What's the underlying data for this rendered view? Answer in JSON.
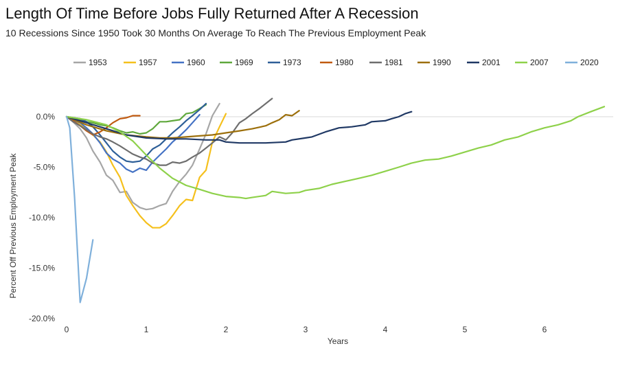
{
  "chart_data": {
    "type": "line",
    "title": "Length Of Time Before Jobs Fully Returned After A Recession",
    "subtitle": "10 Recessions Since 1950 Took 30 Months On Average To Reach The Previous Employment Peak",
    "xlabel": "Years",
    "ylabel": "Percent Off Previous Employment Peak",
    "xlim": [
      0,
      7
    ],
    "ylim": [
      -20,
      2
    ],
    "xticks": [
      "0",
      "1",
      "2",
      "3",
      "4",
      "5",
      "6"
    ],
    "yticks": [
      "0.0%",
      "-5.0%",
      "-10.0%",
      "-15.0%",
      "-20.0%"
    ],
    "legend_position": "top",
    "series": [
      {
        "name": "1953",
        "color": "#a6a6a6",
        "points": [
          [
            0,
            0
          ],
          [
            0.08,
            -0.5
          ],
          [
            0.17,
            -1.2
          ],
          [
            0.25,
            -2.1
          ],
          [
            0.33,
            -3.4
          ],
          [
            0.42,
            -4.5
          ],
          [
            0.5,
            -5.8
          ],
          [
            0.58,
            -6.3
          ],
          [
            0.67,
            -7.5
          ],
          [
            0.75,
            -7.4
          ],
          [
            0.83,
            -8.5
          ],
          [
            0.92,
            -9.0
          ],
          [
            1.0,
            -9.2
          ],
          [
            1.08,
            -9.1
          ],
          [
            1.17,
            -8.8
          ],
          [
            1.25,
            -8.6
          ],
          [
            1.33,
            -7.4
          ],
          [
            1.42,
            -6.4
          ],
          [
            1.5,
            -5.7
          ],
          [
            1.58,
            -4.8
          ],
          [
            1.67,
            -3.2
          ],
          [
            1.75,
            -1.7
          ],
          [
            1.83,
            0.1
          ],
          [
            1.92,
            1.3
          ]
        ]
      },
      {
        "name": "1957",
        "color": "#f5c01c",
        "points": [
          [
            0,
            0
          ],
          [
            0.08,
            -0.3
          ],
          [
            0.17,
            -0.8
          ],
          [
            0.25,
            -1.2
          ],
          [
            0.33,
            -1.8
          ],
          [
            0.42,
            -2.5
          ],
          [
            0.5,
            -3.5
          ],
          [
            0.58,
            -4.8
          ],
          [
            0.67,
            -6.0
          ],
          [
            0.75,
            -7.8
          ],
          [
            0.83,
            -8.8
          ],
          [
            0.92,
            -9.8
          ],
          [
            1.0,
            -10.5
          ],
          [
            1.08,
            -11.0
          ],
          [
            1.17,
            -11.0
          ],
          [
            1.25,
            -10.6
          ],
          [
            1.33,
            -9.8
          ],
          [
            1.42,
            -8.8
          ],
          [
            1.5,
            -8.2
          ],
          [
            1.58,
            -8.3
          ],
          [
            1.67,
            -6.0
          ],
          [
            1.75,
            -5.3
          ],
          [
            1.83,
            -2.5
          ],
          [
            1.92,
            -1.0
          ],
          [
            2.0,
            0.3
          ]
        ]
      },
      {
        "name": "1960",
        "color": "#4472c4",
        "points": [
          [
            0,
            0
          ],
          [
            0.08,
            -0.3
          ],
          [
            0.17,
            -0.6
          ],
          [
            0.25,
            -1.1
          ],
          [
            0.33,
            -1.7
          ],
          [
            0.42,
            -2.6
          ],
          [
            0.5,
            -3.6
          ],
          [
            0.58,
            -4.2
          ],
          [
            0.67,
            -4.6
          ],
          [
            0.75,
            -5.2
          ],
          [
            0.83,
            -5.5
          ],
          [
            0.92,
            -5.1
          ],
          [
            1.0,
            -5.3
          ],
          [
            1.08,
            -4.5
          ],
          [
            1.17,
            -3.8
          ],
          [
            1.25,
            -3.2
          ],
          [
            1.33,
            -2.5
          ],
          [
            1.42,
            -1.9
          ],
          [
            1.5,
            -1.3
          ],
          [
            1.58,
            -0.6
          ],
          [
            1.67,
            0.2
          ]
        ]
      },
      {
        "name": "1969",
        "color": "#5fa83c",
        "points": [
          [
            0,
            0
          ],
          [
            0.08,
            -0.1
          ],
          [
            0.17,
            -0.3
          ],
          [
            0.25,
            -0.5
          ],
          [
            0.33,
            -0.6
          ],
          [
            0.42,
            -0.8
          ],
          [
            0.5,
            -0.9
          ],
          [
            0.58,
            -1.1
          ],
          [
            0.67,
            -1.4
          ],
          [
            0.75,
            -1.6
          ],
          [
            0.83,
            -1.5
          ],
          [
            0.92,
            -1.7
          ],
          [
            1.0,
            -1.6
          ],
          [
            1.08,
            -1.2
          ],
          [
            1.17,
            -0.5
          ],
          [
            1.25,
            -0.5
          ],
          [
            1.33,
            -0.4
          ],
          [
            1.42,
            -0.3
          ],
          [
            1.5,
            0.3
          ],
          [
            1.58,
            0.4
          ],
          [
            1.67,
            0.8
          ],
          [
            1.75,
            1.2
          ]
        ]
      },
      {
        "name": "1973",
        "color": "#2e5f98",
        "points": [
          [
            0,
            0
          ],
          [
            0.08,
            -0.1
          ],
          [
            0.17,
            -0.2
          ],
          [
            0.25,
            -0.5
          ],
          [
            0.33,
            -1.0
          ],
          [
            0.42,
            -1.8
          ],
          [
            0.5,
            -2.6
          ],
          [
            0.58,
            -3.4
          ],
          [
            0.67,
            -4.0
          ],
          [
            0.75,
            -4.4
          ],
          [
            0.83,
            -4.5
          ],
          [
            0.92,
            -4.4
          ],
          [
            1.0,
            -3.9
          ],
          [
            1.08,
            -3.2
          ],
          [
            1.17,
            -2.8
          ],
          [
            1.25,
            -2.2
          ],
          [
            1.33,
            -1.6
          ],
          [
            1.42,
            -1.0
          ],
          [
            1.5,
            -0.4
          ],
          [
            1.58,
            0.1
          ],
          [
            1.67,
            0.7
          ],
          [
            1.75,
            1.3
          ]
        ]
      },
      {
        "name": "1980",
        "color": "#c05a10",
        "points": [
          [
            0,
            0
          ],
          [
            0.08,
            -0.4
          ],
          [
            0.17,
            -0.9
          ],
          [
            0.25,
            -1.4
          ],
          [
            0.33,
            -1.8
          ],
          [
            0.42,
            -1.5
          ],
          [
            0.5,
            -1.1
          ],
          [
            0.58,
            -0.6
          ],
          [
            0.67,
            -0.2
          ],
          [
            0.75,
            -0.1
          ],
          [
            0.83,
            0.1
          ],
          [
            0.92,
            0.1
          ]
        ]
      },
      {
        "name": "1981",
        "color": "#6e6e6e",
        "points": [
          [
            0,
            0
          ],
          [
            0.08,
            -0.5
          ],
          [
            0.17,
            -0.9
          ],
          [
            0.25,
            -1.3
          ],
          [
            0.33,
            -1.7
          ],
          [
            0.42,
            -2.0
          ],
          [
            0.5,
            -2.2
          ],
          [
            0.58,
            -2.5
          ],
          [
            0.67,
            -2.9
          ],
          [
            0.75,
            -3.3
          ],
          [
            0.83,
            -3.7
          ],
          [
            0.92,
            -4.0
          ],
          [
            1.0,
            -4.2
          ],
          [
            1.08,
            -4.6
          ],
          [
            1.17,
            -4.8
          ],
          [
            1.25,
            -4.8
          ],
          [
            1.33,
            -4.5
          ],
          [
            1.42,
            -4.6
          ],
          [
            1.5,
            -4.4
          ],
          [
            1.58,
            -4.0
          ],
          [
            1.67,
            -3.6
          ],
          [
            1.75,
            -3.1
          ],
          [
            1.83,
            -2.6
          ],
          [
            1.92,
            -2.0
          ],
          [
            2.0,
            -2.3
          ],
          [
            2.08,
            -1.6
          ],
          [
            2.17,
            -0.6
          ],
          [
            2.25,
            -0.2
          ],
          [
            2.33,
            0.3
          ],
          [
            2.42,
            0.8
          ],
          [
            2.5,
            1.3
          ],
          [
            2.58,
            1.8
          ]
        ]
      },
      {
        "name": "1990",
        "color": "#9c6f0b",
        "points": [
          [
            0,
            0
          ],
          [
            0.25,
            -0.8
          ],
          [
            0.5,
            -1.4
          ],
          [
            0.75,
            -1.8
          ],
          [
            1.0,
            -2.0
          ],
          [
            1.17,
            -2.1
          ],
          [
            1.33,
            -2.1
          ],
          [
            1.5,
            -2.0
          ],
          [
            1.67,
            -1.9
          ],
          [
            1.83,
            -1.8
          ],
          [
            2.0,
            -1.6
          ],
          [
            2.17,
            -1.4
          ],
          [
            2.33,
            -1.2
          ],
          [
            2.5,
            -0.9
          ],
          [
            2.58,
            -0.6
          ],
          [
            2.67,
            -0.3
          ],
          [
            2.75,
            0.2
          ],
          [
            2.83,
            0.1
          ],
          [
            2.92,
            0.6
          ]
        ]
      },
      {
        "name": "2001",
        "color": "#1f3864",
        "points": [
          [
            0,
            0
          ],
          [
            0.25,
            -0.6
          ],
          [
            0.5,
            -1.2
          ],
          [
            0.75,
            -1.8
          ],
          [
            1.0,
            -2.1
          ],
          [
            1.25,
            -2.2
          ],
          [
            1.5,
            -2.2
          ],
          [
            1.75,
            -2.3
          ],
          [
            1.92,
            -2.3
          ],
          [
            2.0,
            -2.5
          ],
          [
            2.17,
            -2.6
          ],
          [
            2.5,
            -2.6
          ],
          [
            2.75,
            -2.5
          ],
          [
            2.83,
            -2.3
          ],
          [
            3.0,
            -2.1
          ],
          [
            3.08,
            -2.0
          ],
          [
            3.25,
            -1.5
          ],
          [
            3.42,
            -1.1
          ],
          [
            3.58,
            -1.0
          ],
          [
            3.75,
            -0.8
          ],
          [
            3.83,
            -0.5
          ],
          [
            4.0,
            -0.4
          ],
          [
            4.08,
            -0.2
          ],
          [
            4.17,
            0.0
          ],
          [
            4.25,
            0.3
          ],
          [
            4.33,
            0.5
          ]
        ]
      },
      {
        "name": "2007",
        "color": "#8ed14a",
        "points": [
          [
            0,
            0
          ],
          [
            0.25,
            -0.3
          ],
          [
            0.5,
            -0.8
          ],
          [
            0.67,
            -1.5
          ],
          [
            0.83,
            -2.4
          ],
          [
            1.0,
            -3.8
          ],
          [
            1.17,
            -5.1
          ],
          [
            1.33,
            -6.1
          ],
          [
            1.5,
            -6.8
          ],
          [
            1.67,
            -7.2
          ],
          [
            1.83,
            -7.6
          ],
          [
            2.0,
            -7.9
          ],
          [
            2.17,
            -8.0
          ],
          [
            2.25,
            -8.1
          ],
          [
            2.33,
            -8.0
          ],
          [
            2.5,
            -7.8
          ],
          [
            2.58,
            -7.4
          ],
          [
            2.75,
            -7.6
          ],
          [
            2.92,
            -7.5
          ],
          [
            3.0,
            -7.3
          ],
          [
            3.17,
            -7.1
          ],
          [
            3.33,
            -6.7
          ],
          [
            3.5,
            -6.4
          ],
          [
            3.67,
            -6.1
          ],
          [
            3.83,
            -5.8
          ],
          [
            4.0,
            -5.4
          ],
          [
            4.17,
            -5.0
          ],
          [
            4.33,
            -4.6
          ],
          [
            4.5,
            -4.3
          ],
          [
            4.67,
            -4.2
          ],
          [
            4.83,
            -3.9
          ],
          [
            5.0,
            -3.5
          ],
          [
            5.17,
            -3.1
          ],
          [
            5.33,
            -2.8
          ],
          [
            5.5,
            -2.3
          ],
          [
            5.67,
            -2.0
          ],
          [
            5.83,
            -1.5
          ],
          [
            6.0,
            -1.1
          ],
          [
            6.17,
            -0.8
          ],
          [
            6.33,
            -0.4
          ],
          [
            6.42,
            0.0
          ],
          [
            6.58,
            0.5
          ],
          [
            6.75,
            1.0
          ]
        ]
      },
      {
        "name": "2020",
        "color": "#7fb0db",
        "points": [
          [
            0,
            0
          ],
          [
            0.04,
            -1.1
          ],
          [
            0.1,
            -8.0
          ],
          [
            0.17,
            -18.4
          ],
          [
            0.25,
            -16.0
          ],
          [
            0.33,
            -12.2
          ]
        ]
      }
    ]
  }
}
